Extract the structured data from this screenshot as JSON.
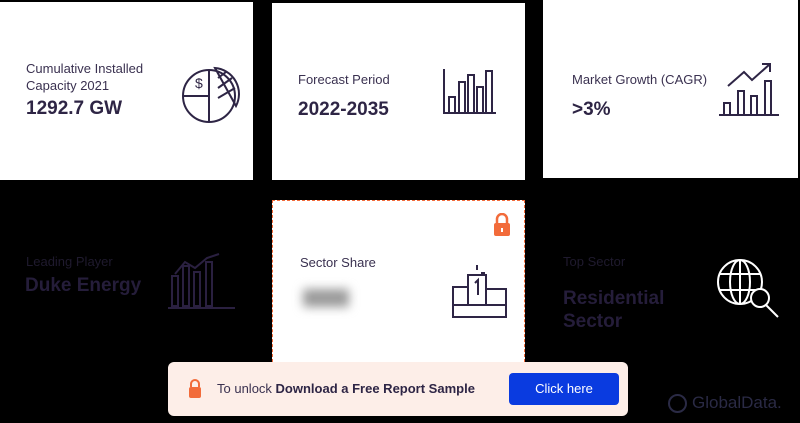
{
  "cards": [
    {
      "label": "Cumulative Installed Capacity 2021",
      "value": "1292.7 GW",
      "icon": "pie-chart-dollar-icon"
    },
    {
      "label": "Forecast Period",
      "value": "2022-2035",
      "icon": "bar-chart-icon"
    },
    {
      "label": "Market Growth (CAGR)",
      "value": ">3%",
      "icon": "growth-chart-icon"
    },
    {
      "label": "Leading Player",
      "value": "Duke Energy",
      "icon": "line-bar-chart-icon"
    },
    {
      "label": "Sector Share",
      "value": "",
      "icon": "podium-icon",
      "locked": true
    },
    {
      "label": "Top Sector",
      "value": "Residential Sector",
      "icon": "globe-search-icon"
    }
  ],
  "banner": {
    "prefix": "To unlock ",
    "bold": "Download a Free Report Sample",
    "button": "Click here"
  },
  "logo": "GlobalData.",
  "colors": {
    "accent": "#f26b3a",
    "button": "#0a3be0",
    "banner_bg": "#fdeee8",
    "text": "#2e2545"
  }
}
